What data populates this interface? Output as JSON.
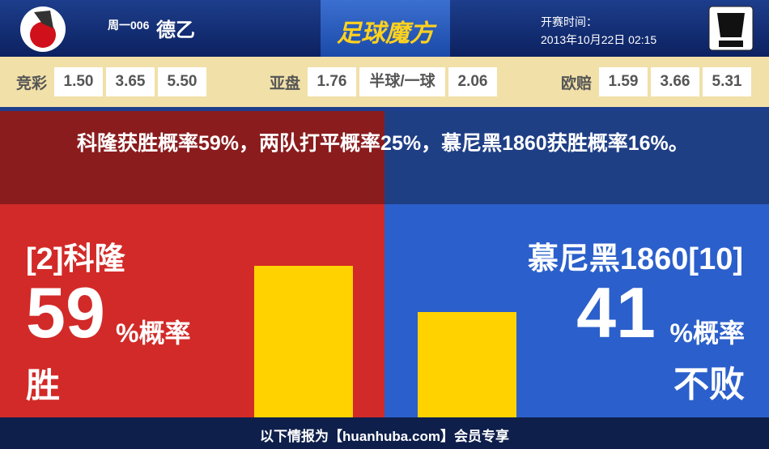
{
  "header": {
    "match_no": "周一006",
    "league": "德乙",
    "brand": "足球魔方",
    "kickoff_label": "开赛时间：",
    "kickoff_time": "2013年10月22日 02:15"
  },
  "odds": {
    "jingcai": {
      "label": "竞彩",
      "values": [
        "1.50",
        "3.65",
        "5.50"
      ]
    },
    "yapan": {
      "label": "亚盘",
      "values": [
        "1.76",
        "半球/一球",
        "2.06"
      ]
    },
    "oupei": {
      "label": "欧赔",
      "values": [
        "1.59",
        "3.66",
        "5.31"
      ]
    }
  },
  "summary": "科隆获胜概率59%，两队打平概率25%，慕尼黑1860获胜概率16%。",
  "home": {
    "team": "[2]科隆",
    "pct": 59,
    "pct_suffix": "%概率",
    "verdict": "胜"
  },
  "away": {
    "team": "慕尼黑1860[10]",
    "pct": 41,
    "pct_suffix": "%概率",
    "verdict": "不败"
  },
  "footer": "以下情报为【huanhuba.com】会员专享"
}
